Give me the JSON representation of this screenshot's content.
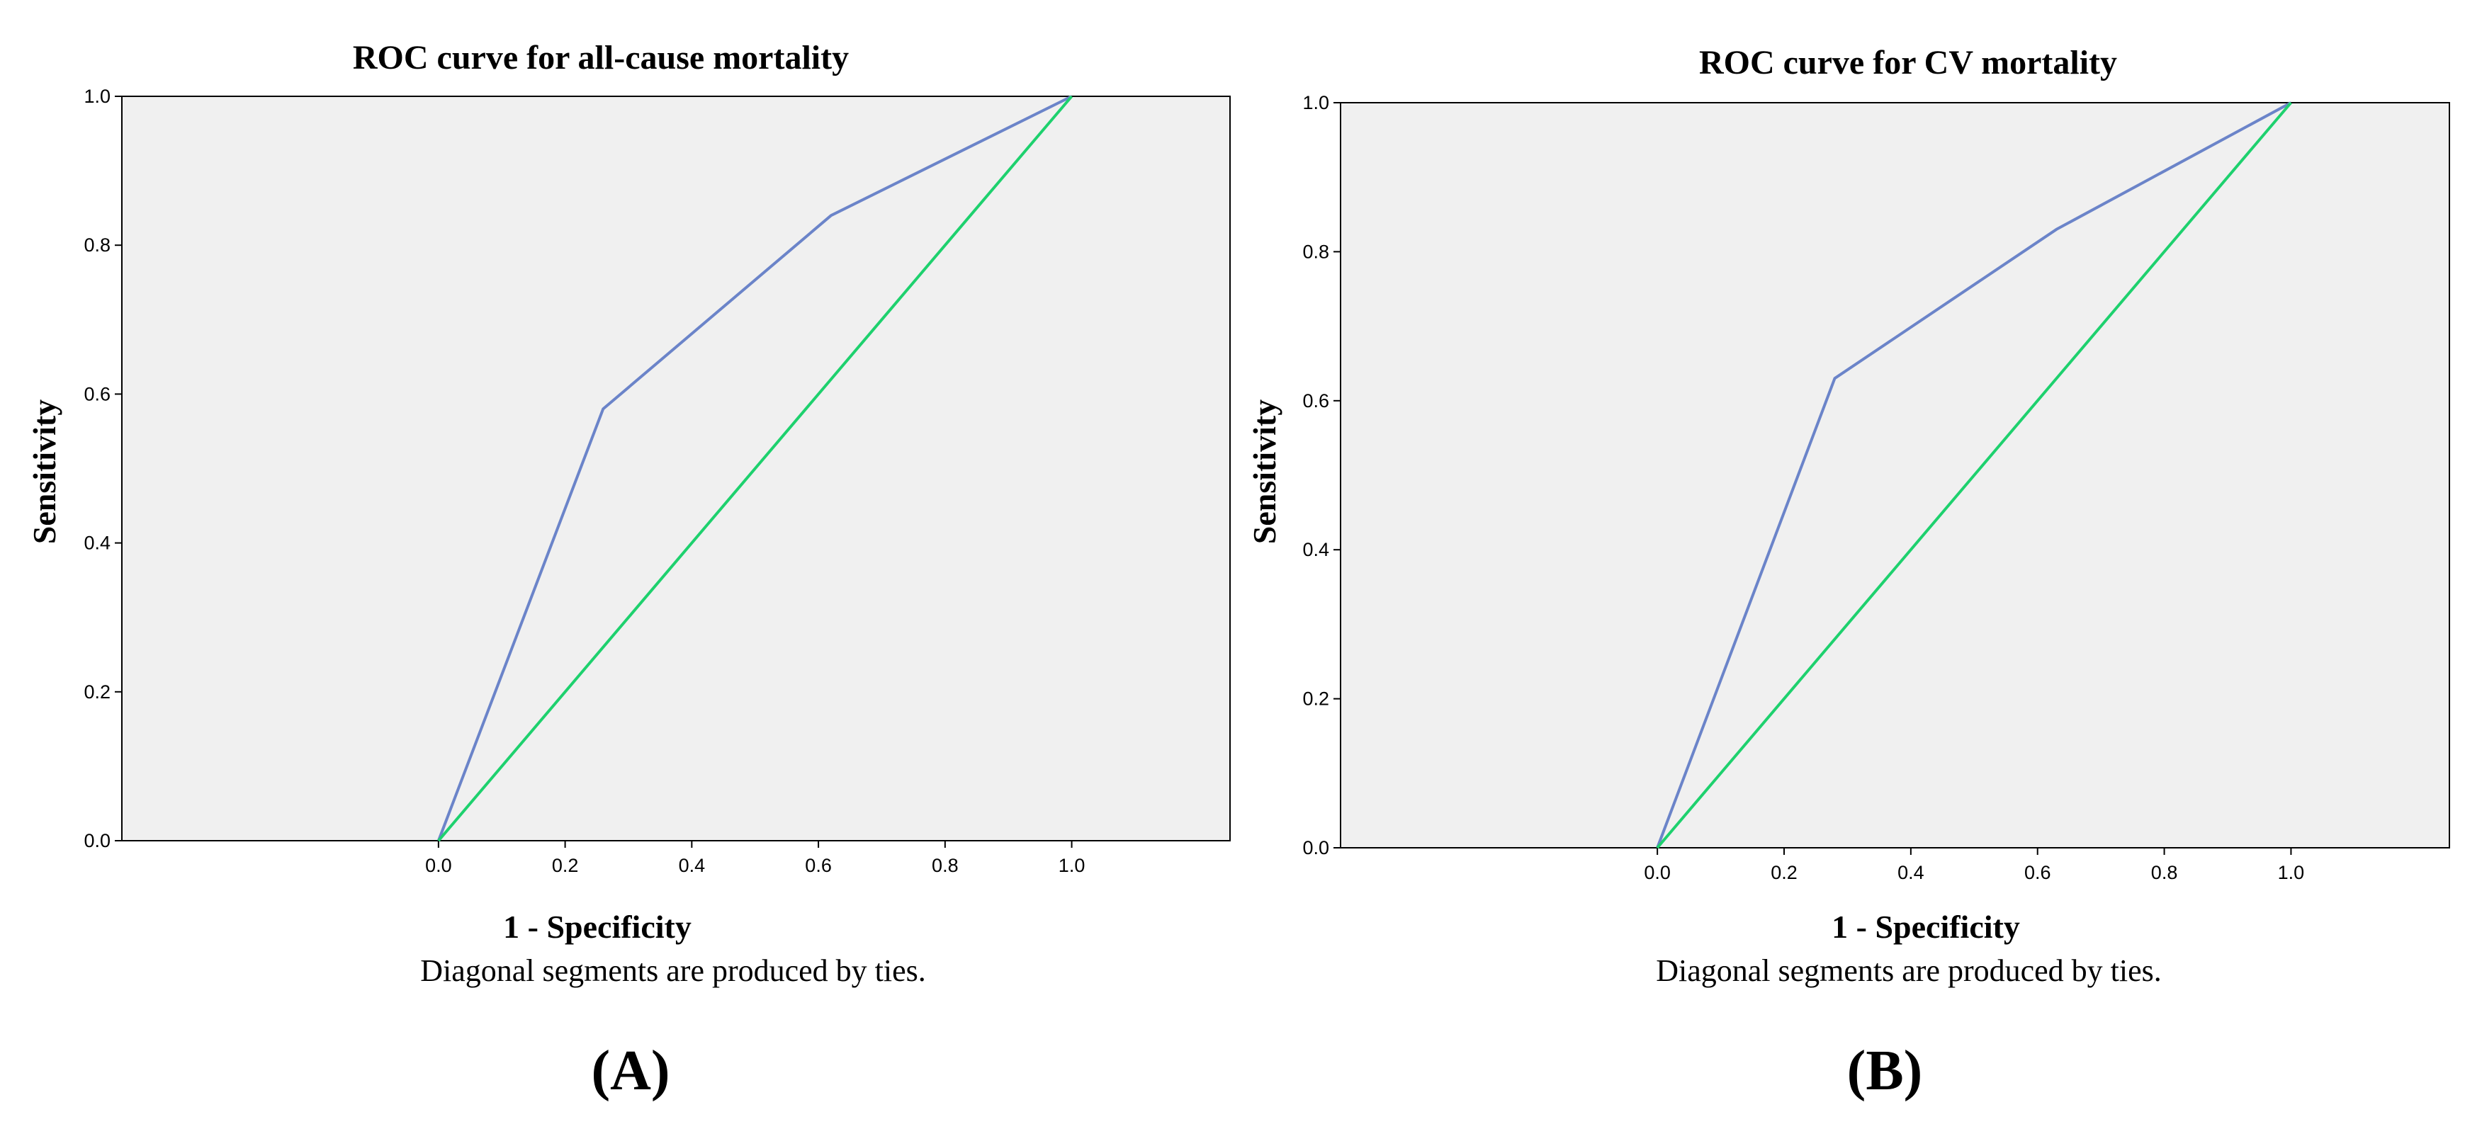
{
  "chart_data": [
    {
      "type": "line",
      "panel_label": "(A)",
      "title": "ROC curve for all-cause mortality",
      "xlabel": "1 - Specificity",
      "ylabel": "Sensitivity",
      "note": "Diagonal segments are produced by ties.",
      "xlim": [
        -0.5,
        1.25
      ],
      "ylim": [
        0,
        1
      ],
      "x_ticks": [
        "0.0",
        "0.2",
        "0.4",
        "0.6",
        "0.8",
        "1.0"
      ],
      "x_tick_values": [
        0,
        0.2,
        0.4,
        0.6,
        0.8,
        1.0
      ],
      "y_ticks": [
        "0.0",
        "0.2",
        "0.4",
        "0.6",
        "0.8",
        "1.0"
      ],
      "y_tick_values": [
        0,
        0.2,
        0.4,
        0.6,
        0.8,
        1.0
      ],
      "series": [
        {
          "name": "ROC curve",
          "color": "#6b84c9",
          "x": [
            0,
            0.26,
            0.62,
            1.0
          ],
          "y": [
            0,
            0.58,
            0.84,
            1.0
          ]
        },
        {
          "name": "Reference line",
          "color": "#1ed16e",
          "x": [
            0,
            1.0
          ],
          "y": [
            0,
            1.0
          ]
        }
      ]
    },
    {
      "type": "line",
      "panel_label": "(B)",
      "title": "ROC curve for CV mortality",
      "xlabel": "1 - Specificity",
      "ylabel": "Sensitivity",
      "note": "Diagonal segments are produced by ties.",
      "xlim": [
        -0.5,
        1.25
      ],
      "ylim": [
        0,
        1
      ],
      "x_ticks": [
        "0.0",
        "0.2",
        "0.4",
        "0.6",
        "0.8",
        "1.0"
      ],
      "x_tick_values": [
        0,
        0.2,
        0.4,
        0.6,
        0.8,
        1.0
      ],
      "y_ticks": [
        "0.0",
        "0.2",
        "0.4",
        "0.6",
        "0.8",
        "1.0"
      ],
      "y_tick_values": [
        0,
        0.2,
        0.4,
        0.6,
        0.8,
        1.0
      ],
      "series": [
        {
          "name": "ROC curve",
          "color": "#6b84c9",
          "x": [
            0,
            0.28,
            0.63,
            1.0
          ],
          "y": [
            0,
            0.63,
            0.83,
            1.0
          ]
        },
        {
          "name": "Reference line",
          "color": "#1ed16e",
          "x": [
            0,
            1.0
          ],
          "y": [
            0,
            1.0
          ]
        }
      ]
    }
  ],
  "colors": {
    "plot_background": "#f0f0f0",
    "axis": "#000000"
  }
}
